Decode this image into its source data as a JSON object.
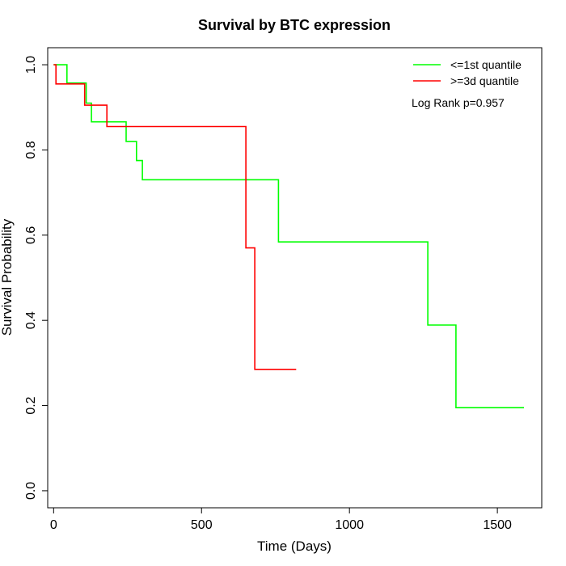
{
  "chart_data": {
    "type": "line",
    "title": "Survival by BTC expression",
    "xlabel": "Time (Days)",
    "ylabel": "Survival Probability",
    "xlim": [
      -20,
      1650
    ],
    "ylim": [
      -0.04,
      1.04
    ],
    "xticks": [
      0,
      500,
      1000,
      1500
    ],
    "xtick_labels": [
      "0",
      "500",
      "1000",
      "1500"
    ],
    "yticks": [
      0.0,
      0.2,
      0.4,
      0.6,
      0.8,
      1.0
    ],
    "ytick_labels": [
      "0.0",
      "0.2",
      "0.4",
      "0.6",
      "0.8",
      "1.0"
    ],
    "step": true,
    "legend_position": "top-right",
    "annotation": "Log Rank p=0.957",
    "series": [
      {
        "name": "<=1st quantile",
        "color": "#00ff00",
        "x": [
          0,
          45,
          45,
          110,
          110,
          128,
          128,
          245,
          245,
          280,
          280,
          300,
          300,
          760,
          760,
          1265,
          1265,
          1360,
          1360,
          1590
        ],
        "y": [
          1.0,
          1.0,
          0.957,
          0.957,
          0.91,
          0.91,
          0.866,
          0.866,
          0.82,
          0.82,
          0.775,
          0.775,
          0.73,
          0.73,
          0.584,
          0.584,
          0.389,
          0.389,
          0.195,
          0.195
        ]
      },
      {
        "name": ">=3d quantile",
        "color": "#ff0000",
        "x": [
          0,
          8,
          8,
          105,
          105,
          180,
          180,
          650,
          650,
          680,
          680,
          820
        ],
        "y": [
          1.0,
          1.0,
          0.955,
          0.955,
          0.905,
          0.905,
          0.855,
          0.855,
          0.57,
          0.57,
          0.285,
          0.285
        ]
      }
    ]
  }
}
